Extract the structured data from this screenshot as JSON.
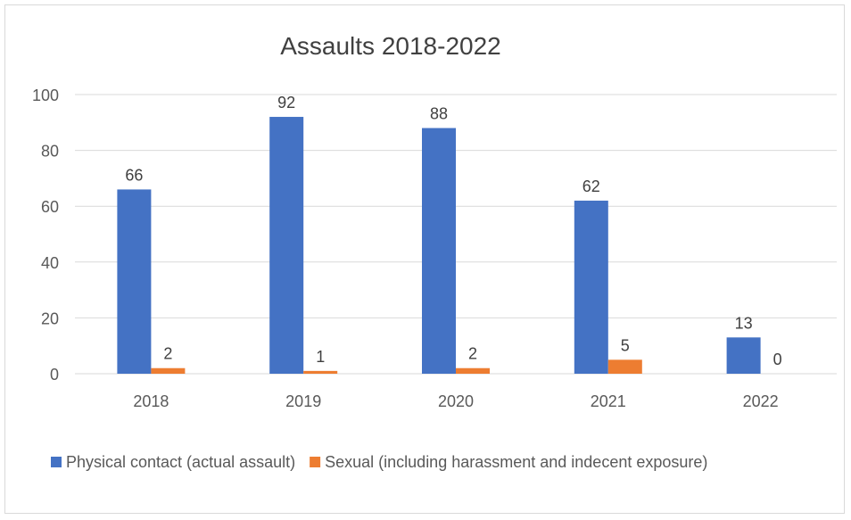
{
  "chart_data": {
    "type": "bar",
    "title": "Assaults 2018-2022",
    "xlabel": "",
    "ylabel": "",
    "categories": [
      "2018",
      "2019",
      "2020",
      "2021",
      "2022"
    ],
    "series": [
      {
        "name": "Physical contact (actual assault)",
        "values": [
          66,
          92,
          88,
          62,
          13
        ],
        "color": "#4472C4"
      },
      {
        "name": "Sexual (including harassment and indecent exposure)",
        "values": [
          2,
          1,
          2,
          5,
          0
        ],
        "color": "#ED7D31"
      }
    ],
    "ylim": [
      0,
      100
    ],
    "yticks": [
      "0",
      "20",
      "40",
      "60",
      "80",
      "100"
    ],
    "grid": true,
    "legend_position": "bottom",
    "data_labels": true
  }
}
